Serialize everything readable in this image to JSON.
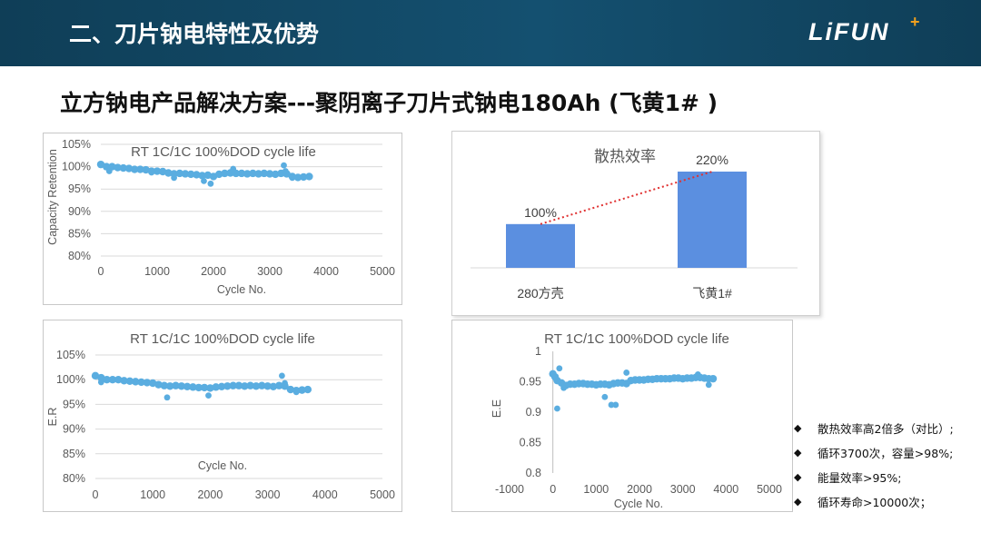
{
  "header": {
    "title": "二、刀片钠电特性及优势",
    "logo": "LiFUN",
    "logo_plus": "+"
  },
  "subtitle": "立方钠电产品解决方案---聚阴离子刀片式钠电180Ah (飞黄1# )",
  "bullets": [
    "散热效率高2倍多（对比）;",
    "循环3700次，容量>98%;",
    "能量效率>95%;",
    "循环寿命>10000次；"
  ],
  "colors": {
    "header": "#145070",
    "scatter": "#5aade0",
    "bar": "#5b8fe0",
    "trend_line": "#e03030"
  },
  "chart_data": [
    {
      "type": "scatter",
      "title": "RT 1C/1C 100%DOD cycle life",
      "xlabel": "Cycle No.",
      "ylabel": "Capacity Retention",
      "xlim": [
        0,
        5000
      ],
      "ylim": [
        0.8,
        1.05
      ],
      "x_ticks": [
        "0",
        "1000",
        "2000",
        "3000",
        "4000",
        "5000"
      ],
      "y_ticks": [
        "80%",
        "85%",
        "90%",
        "95%",
        "100%",
        "105%"
      ],
      "grid": true,
      "series": [
        {
          "x": [
            0,
            100,
            200,
            300,
            400,
            500,
            600,
            700,
            800,
            900,
            1000,
            1100,
            1200,
            1300,
            1400,
            1500,
            1600,
            1700,
            1800,
            1900,
            2000,
            2100,
            2200,
            2300,
            2400,
            2500,
            2600,
            2700,
            2800,
            2900,
            3000,
            3100,
            3200,
            3300,
            3400,
            3500,
            3600,
            3700
          ],
          "y": [
            1.005,
            1.0,
            1.0,
            0.998,
            0.997,
            0.996,
            0.994,
            0.994,
            0.993,
            0.99,
            0.99,
            0.989,
            0.986,
            0.984,
            0.985,
            0.984,
            0.983,
            0.982,
            0.98,
            0.981,
            0.978,
            0.983,
            0.985,
            0.986,
            0.985,
            0.985,
            0.984,
            0.985,
            0.984,
            0.985,
            0.984,
            0.983,
            0.985,
            0.984,
            0.978,
            0.976,
            0.977,
            0.978
          ]
        },
        {
          "x": [
            150,
            500,
            900,
            1300,
            1830,
            1950,
            2350,
            3250,
            3280,
            3400
          ],
          "y": [
            0.99,
            0.996,
            0.987,
            0.975,
            0.968,
            0.962,
            0.995,
            1.003,
            0.99,
            0.975
          ]
        }
      ]
    },
    {
      "type": "bar",
      "title": "散热效率",
      "categories": [
        "280方壳",
        "飞黄1#"
      ],
      "values": [
        100,
        220
      ],
      "data_labels": [
        "100%",
        "220%"
      ],
      "trend_line": true
    },
    {
      "type": "scatter",
      "title": "RT 1C/1C 100%DOD cycle life",
      "xlabel": "Cycle No.",
      "ylabel": "E.R",
      "xlim": [
        0,
        5000
      ],
      "ylim": [
        0.8,
        1.05
      ],
      "x_ticks": [
        "0",
        "1000",
        "2000",
        "3000",
        "4000",
        "5000"
      ],
      "y_ticks": [
        "80%",
        "85%",
        "90%",
        "95%",
        "100%",
        "105%"
      ],
      "grid": true,
      "series": [
        {
          "x": [
            0,
            100,
            200,
            300,
            400,
            500,
            600,
            700,
            800,
            900,
            1000,
            1100,
            1200,
            1300,
            1400,
            1500,
            1600,
            1700,
            1800,
            1900,
            2000,
            2100,
            2200,
            2300,
            2400,
            2500,
            2600,
            2700,
            2800,
            2900,
            3000,
            3100,
            3200,
            3300,
            3400,
            3500,
            3600,
            3700
          ],
          "y": [
            1.008,
            1.004,
            1.0,
            1.0,
            1.0,
            0.998,
            0.997,
            0.996,
            0.995,
            0.994,
            0.993,
            0.99,
            0.988,
            0.987,
            0.988,
            0.987,
            0.986,
            0.985,
            0.984,
            0.984,
            0.983,
            0.985,
            0.986,
            0.987,
            0.988,
            0.988,
            0.987,
            0.988,
            0.987,
            0.988,
            0.987,
            0.986,
            0.988,
            0.987,
            0.98,
            0.978,
            0.979,
            0.98
          ]
        },
        {
          "x": [
            100,
            1250,
            1970,
            3250,
            3300,
            3500
          ],
          "y": [
            0.995,
            0.964,
            0.968,
            1.008,
            0.993,
            0.975
          ]
        }
      ]
    },
    {
      "type": "scatter",
      "title": "RT 1C/1C 100%DOD cycle life",
      "xlabel": "Cycle No.",
      "ylabel": "E.E",
      "xlim": [
        -1000,
        5000
      ],
      "ylim": [
        0.8,
        1.0
      ],
      "x_ticks": [
        "-1000",
        "0",
        "1000",
        "2000",
        "3000",
        "4000",
        "5000"
      ],
      "y_ticks": [
        "0.8",
        "0.85",
        "0.9",
        "0.95",
        "1"
      ],
      "grid": false,
      "series": [
        {
          "x": [
            0,
            50,
            100,
            200,
            300,
            400,
            500,
            600,
            700,
            800,
            900,
            1000,
            1100,
            1200,
            1300,
            1400,
            1500,
            1600,
            1700,
            1800,
            1900,
            2000,
            2100,
            2200,
            2300,
            2400,
            2500,
            2600,
            2700,
            2800,
            2900,
            3000,
            3100,
            3200,
            3300,
            3400,
            3500,
            3600,
            3700
          ],
          "y": [
            0.963,
            0.958,
            0.952,
            0.948,
            0.944,
            0.946,
            0.946,
            0.947,
            0.947,
            0.946,
            0.946,
            0.945,
            0.946,
            0.946,
            0.945,
            0.947,
            0.948,
            0.948,
            0.947,
            0.952,
            0.953,
            0.953,
            0.953,
            0.954,
            0.954,
            0.955,
            0.955,
            0.955,
            0.955,
            0.956,
            0.956,
            0.955,
            0.956,
            0.956,
            0.957,
            0.957,
            0.956,
            0.955,
            0.955
          ]
        },
        {
          "x": [
            100,
            150,
            250,
            1200,
            1350,
            1450,
            1700,
            3350,
            3600
          ],
          "y": [
            0.906,
            0.972,
            0.94,
            0.925,
            0.912,
            0.912,
            0.965,
            0.962,
            0.945
          ]
        }
      ]
    }
  ]
}
